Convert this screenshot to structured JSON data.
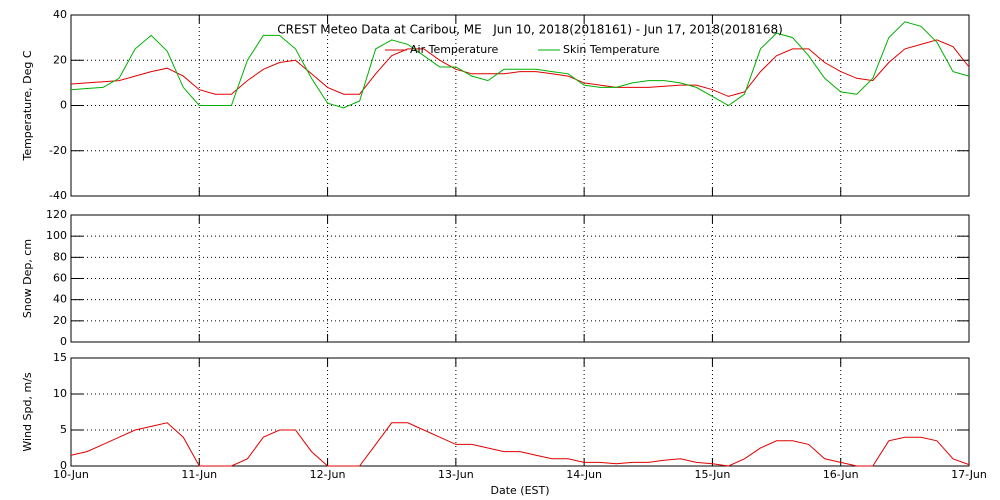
{
  "chart_data": [
    {
      "type": "line",
      "title": "CREST Meteo Data at Caribou, ME   Jun 10, 2018(2018161) - Jun 17, 2018(2018168)",
      "ylabel": "Temperature, Deg C",
      "x": [
        0,
        0.125,
        0.25,
        0.375,
        0.5,
        0.625,
        0.75,
        0.875,
        1,
        1.125,
        1.25,
        1.375,
        1.5,
        1.625,
        1.75,
        1.875,
        2,
        2.125,
        2.25,
        2.375,
        2.5,
        2.625,
        2.75,
        2.875,
        3,
        3.125,
        3.25,
        3.375,
        3.5,
        3.625,
        3.75,
        3.875,
        4,
        4.125,
        4.25,
        4.375,
        4.5,
        4.625,
        4.75,
        4.875,
        5,
        5.125,
        5.25,
        5.375,
        5.5,
        5.625,
        5.75,
        5.875,
        6,
        6.125,
        6.25,
        6.375,
        6.5,
        6.625,
        6.75,
        6.875,
        7
      ],
      "xlim": [
        0,
        7
      ],
      "ylim": [
        -40,
        40
      ],
      "yticks": [
        -40,
        -20,
        0,
        20,
        40
      ],
      "grid": true,
      "series": [
        {
          "name": "Air Temperature",
          "color": "#e00000",
          "values": [
            9.5,
            10,
            10.5,
            11,
            13,
            15,
            16.5,
            13,
            7,
            5,
            5,
            11,
            16,
            19,
            20,
            14,
            8,
            5,
            5,
            14,
            22,
            25,
            25,
            20,
            16,
            14,
            14,
            14,
            15,
            15,
            14,
            13,
            10,
            9,
            8,
            8,
            8,
            8.5,
            9,
            9,
            7,
            4,
            6,
            15,
            22,
            25,
            25,
            19,
            15,
            12,
            11,
            19,
            25,
            27,
            29,
            26,
            17
          ]
        },
        {
          "name": "Skin Temperature",
          "color": "#00b000",
          "values": [
            7,
            7.5,
            8,
            12,
            25,
            31,
            24,
            8,
            0,
            0,
            0,
            20,
            31,
            31,
            25,
            12,
            1,
            -1,
            2,
            25,
            29,
            27,
            22,
            17,
            17,
            13,
            11,
            16,
            16,
            16,
            15,
            14,
            9,
            8,
            8,
            10,
            11,
            11,
            10,
            8,
            4,
            0,
            5,
            25,
            32,
            30,
            22,
            12,
            6,
            5,
            12,
            30,
            37,
            35,
            28,
            15,
            13
          ]
        }
      ]
    },
    {
      "type": "line",
      "ylabel": "Snow Dep, cm",
      "xlim": [
        0,
        7
      ],
      "ylim": [
        0,
        120
      ],
      "yticks": [
        0,
        20,
        40,
        60,
        80,
        100,
        120
      ],
      "grid": true,
      "series": []
    },
    {
      "type": "line",
      "ylabel": "Wind Spd, m/s",
      "xlabel": "Date (EST)",
      "x": [
        0,
        0.125,
        0.25,
        0.375,
        0.5,
        0.625,
        0.75,
        0.875,
        1,
        1.125,
        1.25,
        1.375,
        1.5,
        1.625,
        1.75,
        1.875,
        2,
        2.125,
        2.25,
        2.375,
        2.5,
        2.625,
        2.75,
        2.875,
        3,
        3.125,
        3.25,
        3.375,
        3.5,
        3.625,
        3.75,
        3.875,
        4,
        4.125,
        4.25,
        4.375,
        4.5,
        4.625,
        4.75,
        4.875,
        5,
        5.125,
        5.25,
        5.375,
        5.5,
        5.625,
        5.75,
        5.875,
        6,
        6.125,
        6.25,
        6.375,
        6.5,
        6.625,
        6.75,
        6.875,
        7
      ],
      "xlim": [
        0,
        7
      ],
      "xticks": [
        {
          "value": 0,
          "label": "10-Jun"
        },
        {
          "value": 1,
          "label": "11-Jun"
        },
        {
          "value": 2,
          "label": "12-Jun"
        },
        {
          "value": 3,
          "label": "13-Jun"
        },
        {
          "value": 4,
          "label": "14-Jun"
        },
        {
          "value": 5,
          "label": "15-Jun"
        },
        {
          "value": 6,
          "label": "16-Jun"
        },
        {
          "value": 7,
          "label": "17-Jun"
        }
      ],
      "ylim": [
        0,
        15
      ],
      "yticks": [
        0,
        5,
        10,
        15
      ],
      "grid": true,
      "series": [
        {
          "color": "#e00000",
          "values": [
            1.5,
            2,
            3,
            4,
            5,
            5.5,
            6,
            4,
            0,
            0,
            0,
            1,
            4,
            5,
            5,
            2,
            0,
            0,
            0,
            3,
            6,
            6,
            5,
            4,
            3,
            3,
            2.5,
            2,
            2,
            1.5,
            1,
            1,
            0.5,
            0.5,
            0.3,
            0.5,
            0.5,
            0.8,
            1,
            0.5,
            0.3,
            0,
            1,
            2.5,
            3.5,
            3.5,
            3,
            1,
            0.5,
            0,
            0,
            3.5,
            4,
            4,
            3.5,
            1,
            0.2
          ]
        }
      ]
    }
  ]
}
